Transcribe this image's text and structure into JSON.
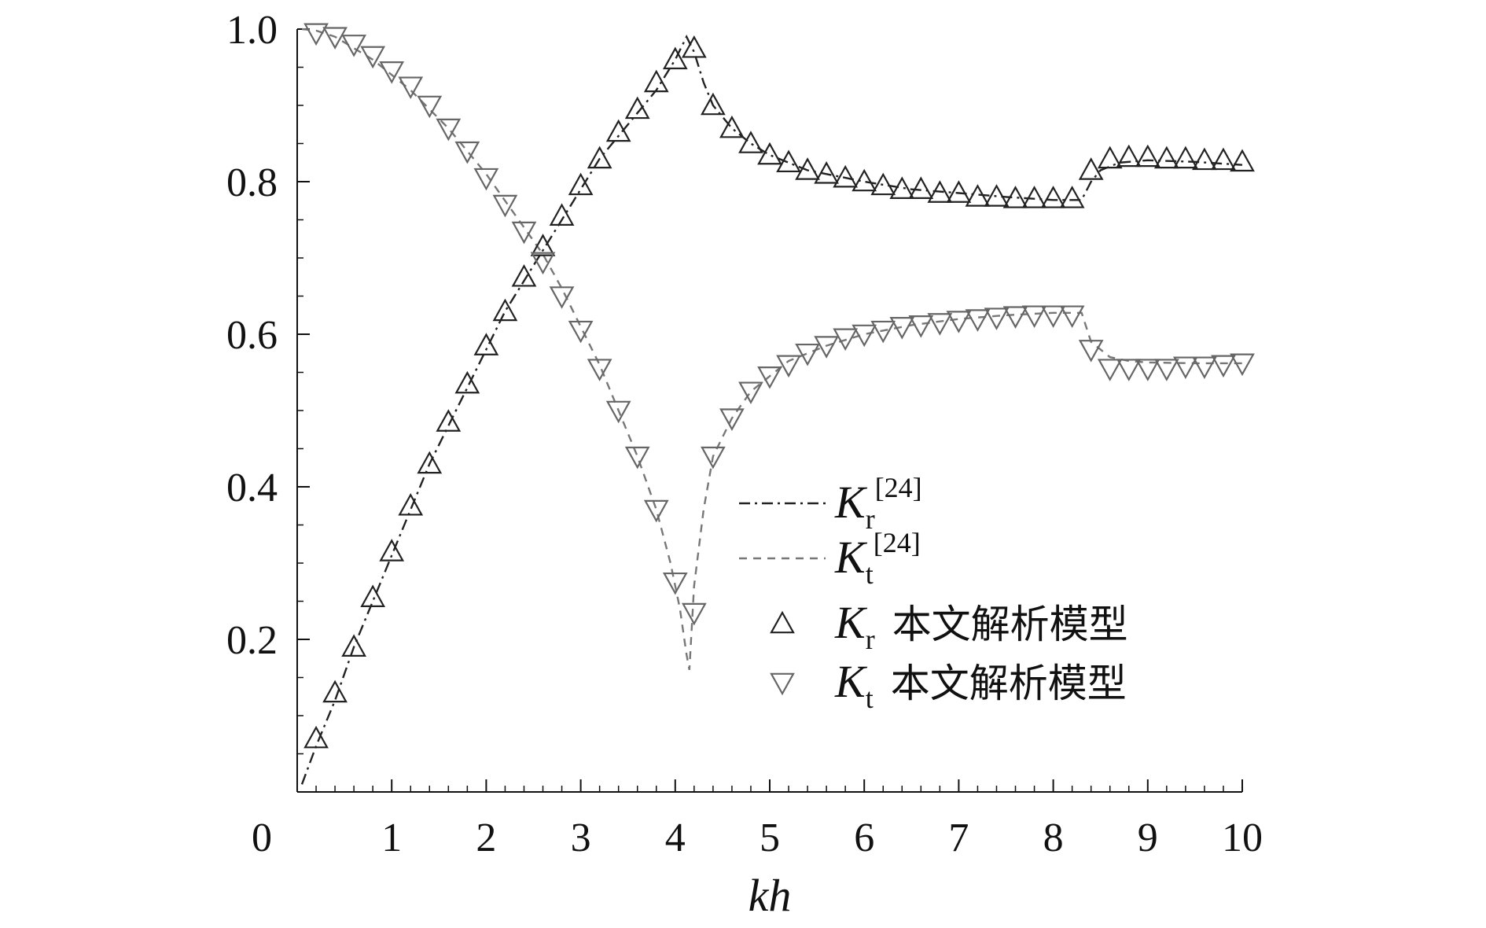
{
  "chart_data": {
    "type": "line",
    "xlabel": "kh",
    "ylabel": "",
    "xlim": [
      0,
      10
    ],
    "ylim": [
      0,
      1.0
    ],
    "x_ticks": [
      "0",
      "1",
      "2",
      "3",
      "4",
      "5",
      "6",
      "7",
      "8",
      "9",
      "10"
    ],
    "y_ticks": [
      "0.2",
      "0.4",
      "0.6",
      "0.8",
      "1.0"
    ],
    "y_tick_values": [
      0.2,
      0.4,
      0.6,
      0.8,
      1.0
    ],
    "grid": false,
    "legend_position": "center-right",
    "legend": [
      {
        "symbol": "K",
        "sub": "r",
        "sup": "[24]",
        "text": "",
        "style": "dash-dot",
        "color": "#222222"
      },
      {
        "symbol": "K",
        "sub": "t",
        "sup": "[24]",
        "text": "",
        "style": "dashed",
        "color": "#777777"
      },
      {
        "symbol": "K",
        "sub": "r",
        "sup": "",
        "text": "本文解析模型",
        "style": "marker-triangle-up",
        "color": "#222222"
      },
      {
        "symbol": "K",
        "sub": "t",
        "sup": "",
        "text": "本文解析模型",
        "style": "marker-triangle-down",
        "color": "#666666"
      }
    ],
    "series": [
      {
        "id": "kr_ref",
        "style": "dash-dot",
        "color": "#222222",
        "x": [
          0.05,
          0.2,
          0.4,
          0.6,
          0.8,
          1.0,
          1.2,
          1.4,
          1.6,
          1.8,
          2.0,
          2.2,
          2.4,
          2.6,
          2.8,
          3.0,
          3.2,
          3.4,
          3.6,
          3.8,
          4.0,
          4.12,
          4.2,
          4.3,
          4.4,
          4.6,
          4.8,
          5.0,
          5.2,
          5.4,
          5.6,
          5.8,
          6.0,
          6.5,
          7.0,
          7.5,
          8.0,
          8.3,
          8.4,
          8.5,
          8.7,
          9.0,
          9.5,
          10.0
        ],
        "y": [
          0.01,
          0.06,
          0.12,
          0.19,
          0.25,
          0.31,
          0.37,
          0.43,
          0.48,
          0.53,
          0.58,
          0.63,
          0.67,
          0.71,
          0.75,
          0.79,
          0.83,
          0.86,
          0.89,
          0.92,
          0.96,
          0.99,
          0.97,
          0.93,
          0.9,
          0.87,
          0.85,
          0.835,
          0.825,
          0.815,
          0.81,
          0.805,
          0.8,
          0.79,
          0.785,
          0.78,
          0.776,
          0.776,
          0.8,
          0.815,
          0.825,
          0.828,
          0.826,
          0.822
        ]
      },
      {
        "id": "kt_ref",
        "style": "dashed",
        "color": "#777777",
        "x": [
          0.05,
          0.2,
          0.4,
          0.6,
          0.8,
          1.0,
          1.2,
          1.4,
          1.6,
          1.8,
          2.0,
          2.2,
          2.4,
          2.6,
          2.8,
          3.0,
          3.2,
          3.4,
          3.6,
          3.8,
          3.95,
          4.05,
          4.12,
          4.15,
          4.2,
          4.3,
          4.4,
          4.6,
          4.8,
          5.0,
          5.2,
          5.4,
          5.6,
          6.0,
          6.5,
          7.0,
          7.5,
          8.0,
          8.3,
          8.4,
          8.6,
          8.8,
          9.0,
          9.5,
          10.0
        ],
        "y": [
          1.0,
          0.998,
          0.99,
          0.975,
          0.96,
          0.94,
          0.92,
          0.895,
          0.87,
          0.84,
          0.81,
          0.775,
          0.74,
          0.705,
          0.66,
          0.61,
          0.56,
          0.5,
          0.44,
          0.37,
          0.3,
          0.24,
          0.18,
          0.16,
          0.27,
          0.37,
          0.44,
          0.49,
          0.525,
          0.545,
          0.565,
          0.575,
          0.585,
          0.6,
          0.612,
          0.62,
          0.625,
          0.628,
          0.628,
          0.59,
          0.57,
          0.565,
          0.563,
          0.562,
          0.562
        ]
      },
      {
        "id": "kr_model",
        "style": "marker-triangle-up",
        "color": "#222222",
        "x": [
          0.2,
          0.4,
          0.6,
          0.8,
          1.0,
          1.2,
          1.4,
          1.6,
          1.8,
          2.0,
          2.2,
          2.4,
          2.6,
          2.8,
          3.0,
          3.2,
          3.4,
          3.6,
          3.8,
          4.0,
          4.2,
          4.4,
          4.6,
          4.8,
          5.0,
          5.2,
          5.4,
          5.6,
          5.8,
          6.0,
          6.2,
          6.4,
          6.6,
          6.8,
          7.0,
          7.2,
          7.4,
          7.6,
          7.8,
          8.0,
          8.2,
          8.4,
          8.6,
          8.8,
          9.0,
          9.2,
          9.4,
          9.6,
          9.8,
          10.0
        ],
        "y": [
          0.07,
          0.13,
          0.19,
          0.255,
          0.315,
          0.375,
          0.43,
          0.485,
          0.535,
          0.585,
          0.63,
          0.675,
          0.715,
          0.755,
          0.795,
          0.83,
          0.865,
          0.895,
          0.93,
          0.96,
          0.975,
          0.9,
          0.87,
          0.85,
          0.835,
          0.825,
          0.815,
          0.81,
          0.805,
          0.8,
          0.795,
          0.79,
          0.79,
          0.785,
          0.785,
          0.78,
          0.78,
          0.778,
          0.778,
          0.778,
          0.778,
          0.815,
          0.83,
          0.832,
          0.832,
          0.83,
          0.83,
          0.828,
          0.828,
          0.826
        ]
      },
      {
        "id": "kt_model",
        "style": "marker-triangle-down",
        "color": "#666666",
        "x": [
          0.2,
          0.4,
          0.6,
          0.8,
          1.0,
          1.2,
          1.4,
          1.6,
          1.8,
          2.0,
          2.2,
          2.4,
          2.6,
          2.8,
          3.0,
          3.2,
          3.4,
          3.6,
          3.8,
          4.0,
          4.2,
          4.4,
          4.6,
          4.8,
          5.0,
          5.2,
          5.4,
          5.6,
          5.8,
          6.0,
          6.2,
          6.4,
          6.6,
          6.8,
          7.0,
          7.2,
          7.4,
          7.6,
          7.8,
          8.0,
          8.2,
          8.4,
          8.6,
          8.8,
          9.0,
          9.2,
          9.4,
          9.6,
          9.8,
          10.0
        ],
        "y": [
          0.995,
          0.99,
          0.98,
          0.965,
          0.945,
          0.925,
          0.9,
          0.87,
          0.84,
          0.805,
          0.77,
          0.735,
          0.695,
          0.65,
          0.605,
          0.555,
          0.5,
          0.44,
          0.37,
          0.275,
          0.235,
          0.44,
          0.49,
          0.525,
          0.545,
          0.56,
          0.575,
          0.585,
          0.595,
          0.6,
          0.605,
          0.61,
          0.612,
          0.615,
          0.618,
          0.62,
          0.622,
          0.624,
          0.625,
          0.625,
          0.625,
          0.58,
          0.555,
          0.555,
          0.555,
          0.555,
          0.558,
          0.558,
          0.56,
          0.562
        ]
      }
    ]
  }
}
